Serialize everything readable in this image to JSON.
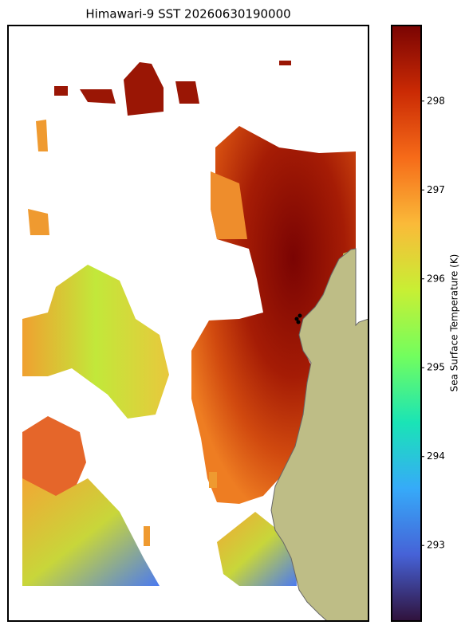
{
  "title": "Himawari-9 SST 20260630190000",
  "colorbar": {
    "label": "Sea Surface Temperature (K)",
    "lim": [
      292.15,
      298.85
    ],
    "ticks": [
      293,
      294,
      295,
      296,
      297,
      298
    ]
  }
}
